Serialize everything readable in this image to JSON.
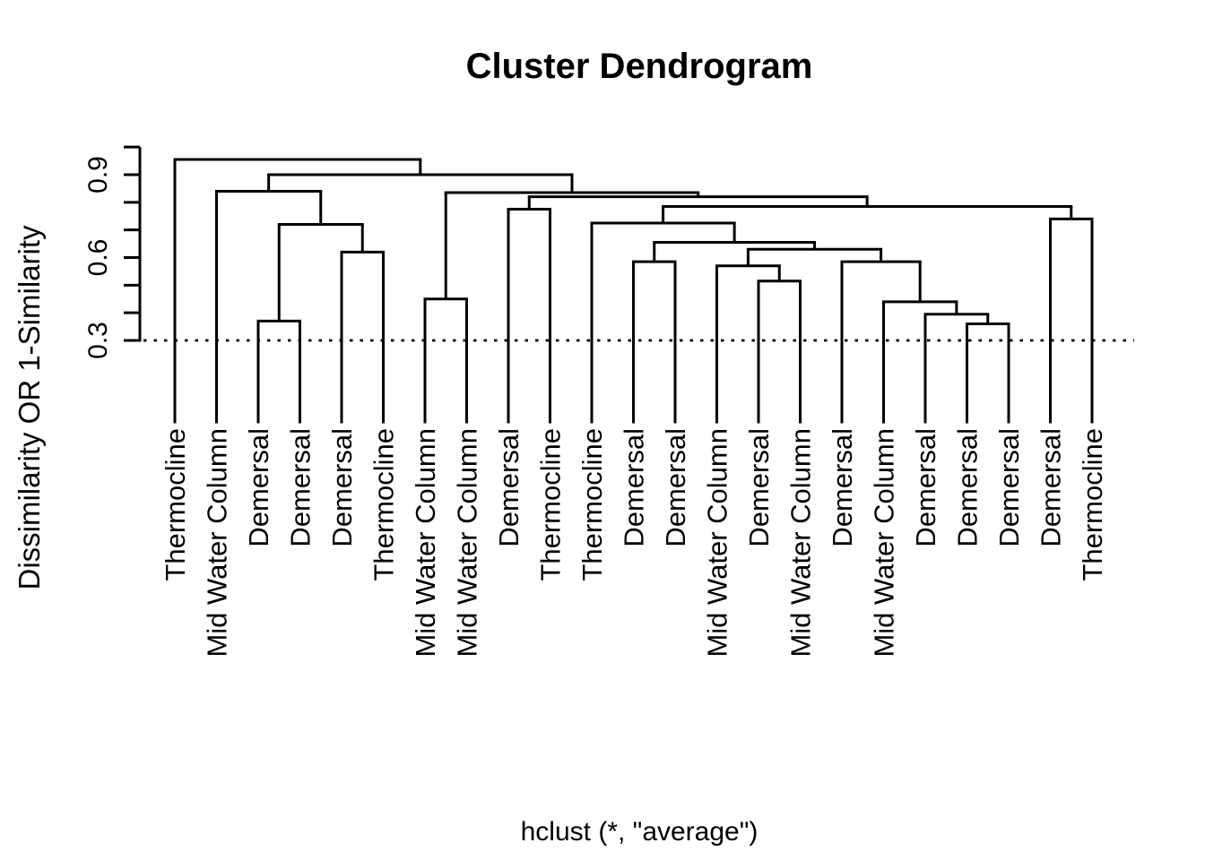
{
  "chart_data": {
    "type": "dendrogram",
    "title": "Cluster Dendrogram",
    "ylabel": "Dissimilarity OR 1-Similarity",
    "sub": "hclust (*, \"average\")",
    "ylim": [
      0,
      1.0
    ],
    "grid": false,
    "cut_line": 0.3,
    "cut_line_style": "dotted",
    "yticks": [
      0.3,
      0.4,
      0.5,
      0.6,
      0.7,
      0.8,
      0.9,
      1.0
    ],
    "labeled_yticks": [
      0.3,
      0.6,
      0.9
    ],
    "ytick_label_texts": [
      "0.3",
      "0.6",
      "0.9"
    ],
    "leaves": [
      "Thermocline",
      "Mid Water Column",
      "Demersal",
      "Demersal",
      "Demersal",
      "Thermocline",
      "Mid Water Column",
      "Mid Water Column",
      "Demersal",
      "Thermocline",
      "Thermocline",
      "Demersal",
      "Demersal",
      "Mid Water Column",
      "Demersal",
      "Mid Water Column",
      "Demersal",
      "Mid Water Column",
      "Demersal",
      "Demersal",
      "Demersal",
      "Demersal",
      "Thermocline"
    ],
    "merges": [
      {
        "children": [
          -3,
          -4
        ],
        "height": 0.37
      },
      {
        "children": [
          -5,
          -6
        ],
        "height": 0.62
      },
      {
        "children": [
          1,
          2
        ],
        "height": 0.72
      },
      {
        "children": [
          -2,
          3
        ],
        "height": 0.84
      },
      {
        "children": [
          -7,
          -8
        ],
        "height": 0.45
      },
      {
        "children": [
          -9,
          -10
        ],
        "height": 0.775
      },
      {
        "children": [
          -12,
          -13
        ],
        "height": 0.585
      },
      {
        "children": [
          -15,
          -16
        ],
        "height": 0.515
      },
      {
        "children": [
          -14,
          8
        ],
        "height": 0.57
      },
      {
        "children": [
          -20,
          -21
        ],
        "height": 0.36
      },
      {
        "children": [
          -19,
          10
        ],
        "height": 0.395
      },
      {
        "children": [
          -18,
          11
        ],
        "height": 0.44
      },
      {
        "children": [
          -17,
          12
        ],
        "height": 0.585
      },
      {
        "children": [
          9,
          13
        ],
        "height": 0.63
      },
      {
        "children": [
          7,
          14
        ],
        "height": 0.655
      },
      {
        "children": [
          -11,
          15
        ],
        "height": 0.725
      },
      {
        "children": [
          -22,
          -23
        ],
        "height": 0.74
      },
      {
        "children": [
          16,
          17
        ],
        "height": 0.785
      },
      {
        "children": [
          6,
          18
        ],
        "height": 0.82
      },
      {
        "children": [
          5,
          19
        ],
        "height": 0.835
      },
      {
        "children": [
          4,
          20
        ],
        "height": 0.9
      },
      {
        "children": [
          -1,
          21
        ],
        "height": 0.955
      }
    ],
    "colors": {
      "line": "#000000",
      "text": "#000000",
      "background": "#ffffff"
    }
  }
}
